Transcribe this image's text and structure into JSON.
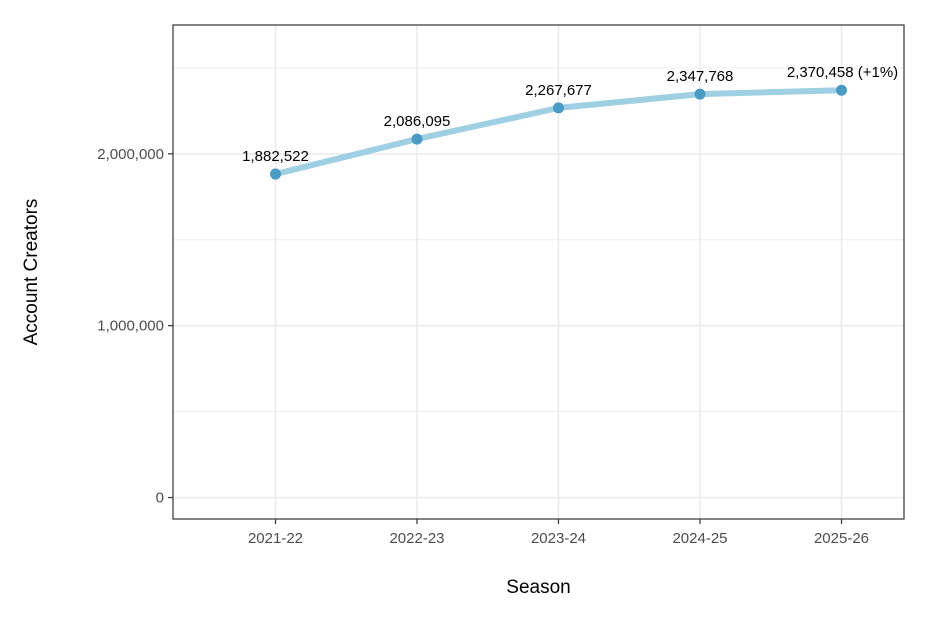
{
  "chart_data": {
    "type": "line",
    "title": "",
    "xlabel": "Season",
    "ylabel": "Account Creators",
    "categories": [
      "2021-22",
      "2022-23",
      "2023-24",
      "2024-25",
      "2025-26"
    ],
    "series": [
      {
        "values": [
          1882522,
          2086095,
          2267677,
          2347768,
          2370458
        ]
      }
    ],
    "data_labels": [
      "1,882,522",
      "2,086,095",
      "2,267,677",
      "2,347,768",
      "2,370,458 (+1%)"
    ],
    "ylim": [
      -125000,
      2750000
    ],
    "y_ticks": [
      0,
      1000000,
      2000000
    ],
    "y_tick_labels": [
      "0",
      "1,000,000",
      "2,000,000"
    ],
    "grid": true,
    "legend": "none",
    "colors": {
      "line": "#9ecfe2",
      "point": "#4a9bc4",
      "grid": "#ebebeb",
      "border": "#333333"
    }
  }
}
